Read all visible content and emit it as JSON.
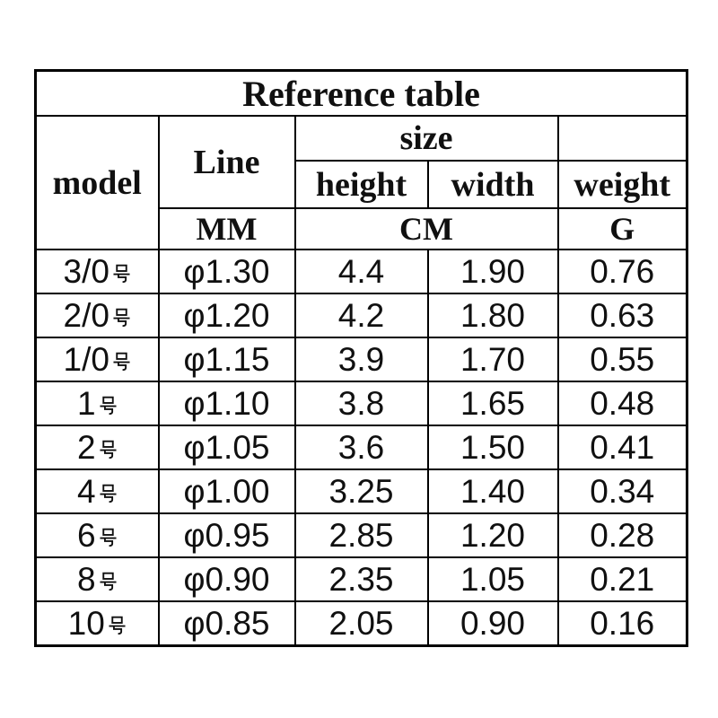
{
  "title": "Reference table",
  "header": {
    "model": "model",
    "line": "Line",
    "size": "size",
    "height": "height",
    "width": "width",
    "weight": "weight",
    "line_unit": "MM",
    "size_unit": "CM",
    "weight_unit": "G"
  },
  "colors": {
    "text": "#101010",
    "border": "#000000",
    "background": "#ffffff"
  },
  "chart_data": {
    "type": "table",
    "title": "Reference table",
    "columns": [
      "model",
      "Line (MM)",
      "size height (CM)",
      "size width (CM)",
      "weight (G)"
    ],
    "rows": [
      [
        "3/0号",
        "φ1.30",
        "4.4",
        "1.90",
        "0.76"
      ],
      [
        "2/0号",
        "φ1.20",
        "4.2",
        "1.80",
        "0.63"
      ],
      [
        "1/0号",
        "φ1.15",
        "3.9",
        "1.70",
        "0.55"
      ],
      [
        "1号",
        "φ1.10",
        "3.8",
        "1.65",
        "0.48"
      ],
      [
        "2号",
        "φ1.05",
        "3.6",
        "1.50",
        "0.41"
      ],
      [
        "4号",
        "φ1.00",
        "3.25",
        "1.40",
        "0.34"
      ],
      [
        "6号",
        "φ0.95",
        "2.85",
        "1.20",
        "0.28"
      ],
      [
        "8号",
        "φ0.90",
        "2.35",
        "1.05",
        "0.21"
      ],
      [
        "10号",
        "φ0.85",
        "2.05",
        "0.90",
        "0.16"
      ]
    ]
  }
}
